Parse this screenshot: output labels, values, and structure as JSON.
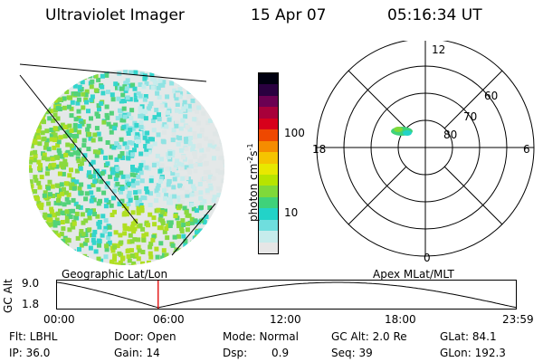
{
  "header": {
    "instrument": "Ultraviolet Imager",
    "date": "15 Apr 07",
    "time": "05:16:34 UT"
  },
  "colorbar": {
    "unit_label": "photon cm",
    "unit_sup1": "-2",
    "unit_mid": "s",
    "unit_sup2": "-1",
    "ticks": [
      "100",
      "10"
    ],
    "colors": [
      "#e6e6e6",
      "#c6ecec",
      "#6fdede",
      "#22d3c8",
      "#3fd27a",
      "#7fd93a",
      "#b7e400",
      "#e8e800",
      "#f5c400",
      "#f58c00",
      "#ee4800",
      "#d7001b",
      "#a8003a",
      "#6b0052",
      "#2a0040",
      "#000010"
    ]
  },
  "polar_plot": {
    "mlt_labels": {
      "top": "12",
      "left": "18",
      "right": "6",
      "bottom": "0"
    },
    "lat_labels": [
      "60",
      "70",
      "80"
    ]
  },
  "timeline": {
    "ylabel": "GC Alt",
    "ymax": "9.0",
    "ymin": "1.8",
    "left_label": "Geographic Lat/Lon",
    "right_label": "Apex MLat/MLT",
    "times": [
      "00:00",
      "06:00",
      "12:00",
      "18:00",
      "23:59"
    ],
    "current_fraction": 0.22
  },
  "info": {
    "filter": "Flt: LBHL",
    "door": "Door: Open",
    "mode": "Mode: Normal",
    "gc_alt": "GC Alt: 2.0 Re",
    "glat": "GLat: 84.1",
    "ip": "IP: 36.0",
    "gain": "Gain: 14",
    "dsp_label": "Dsp:",
    "dsp_value": "0.9",
    "seq": "Seq: 39",
    "glon": "GLon: 192.3"
  }
}
